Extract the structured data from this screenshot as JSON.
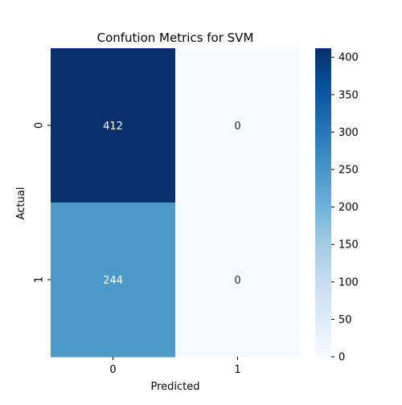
{
  "chart_data": {
    "type": "heatmap",
    "title": "Confution Metrics for SVM",
    "xlabel": "Predicted",
    "ylabel": "Actual",
    "x_categories": [
      "0",
      "1"
    ],
    "y_categories": [
      "0",
      "1"
    ],
    "values": [
      [
        412,
        0
      ],
      [
        244,
        0
      ]
    ],
    "annotations": [
      [
        "412",
        "0"
      ],
      [
        "244",
        "0"
      ]
    ],
    "colormap": "Blues",
    "colorbar": {
      "min": 0,
      "max": 412,
      "ticks": [
        0,
        50,
        100,
        150,
        200,
        250,
        300,
        350,
        400
      ]
    },
    "colors": {
      "cell_412": "#08306b",
      "cell_244": "#4292c6",
      "cell_0": "#f7fbff"
    }
  }
}
